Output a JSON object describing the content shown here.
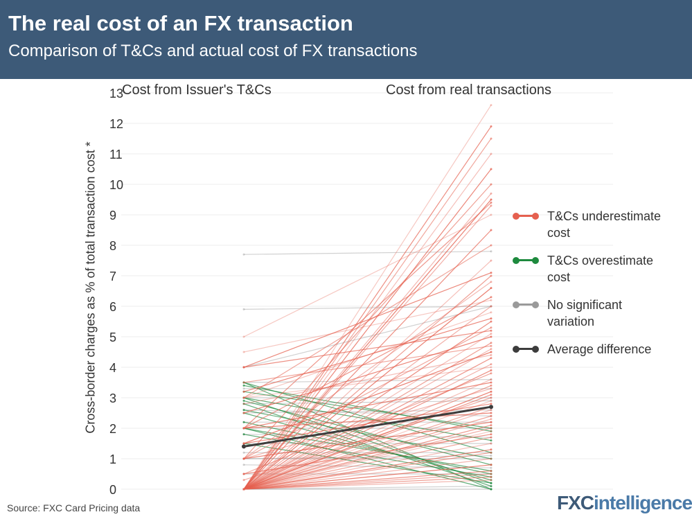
{
  "header": {
    "title": "The real cost of an FX transaction",
    "subtitle": "Comparison of T&Cs and actual cost of FX transactions"
  },
  "footer": {
    "source": "Source: FXC Card Pricing data",
    "logo": "FXCintelligence"
  },
  "chart_data": {
    "type": "slope",
    "categories": [
      "Cost from Issuer's T&Cs",
      "Cost from real transactions"
    ],
    "ylabel": "Cross-border charges as % of total transaction cost *",
    "ylim": [
      0,
      13
    ],
    "yticks": [
      0,
      1,
      2,
      3,
      4,
      5,
      6,
      7,
      8,
      9,
      10,
      11,
      12,
      13
    ],
    "grid": true,
    "legend_placement": "right",
    "series": [
      {
        "name": "T&Cs underestimate cost",
        "color": "#e5604f",
        "lines": [
          [
            0,
            12.6
          ],
          [
            0,
            11.9
          ],
          [
            0,
            11.5
          ],
          [
            0,
            11
          ],
          [
            0,
            10.5
          ],
          [
            1,
            10
          ],
          [
            0,
            9.7
          ],
          [
            0,
            9.5
          ],
          [
            2,
            9.4
          ],
          [
            0,
            9.3
          ],
          [
            5,
            9
          ],
          [
            0,
            8.5
          ],
          [
            3,
            8
          ],
          [
            0,
            7.5
          ],
          [
            4,
            7.1
          ],
          [
            0,
            7
          ],
          [
            1,
            6.8
          ],
          [
            0,
            6.6
          ],
          [
            2,
            6.3
          ],
          [
            0,
            6
          ],
          [
            3,
            5.8
          ],
          [
            0,
            5.5
          ],
          [
            1,
            5.3
          ],
          [
            0,
            5.1
          ],
          [
            2.5,
            5
          ],
          [
            0,
            4.8
          ],
          [
            0,
            4.6
          ],
          [
            1.5,
            4.5
          ],
          [
            0,
            4.3
          ],
          [
            0,
            4.1
          ],
          [
            3,
            4
          ],
          [
            0,
            3.9
          ],
          [
            0.5,
            3.8
          ],
          [
            0,
            3.6
          ],
          [
            2,
            3.5
          ],
          [
            0,
            3.4
          ],
          [
            1,
            3.3
          ],
          [
            0,
            3.2
          ],
          [
            0,
            3.1
          ],
          [
            0.3,
            3
          ],
          [
            0,
            2.9
          ],
          [
            1.5,
            2.8
          ],
          [
            0,
            2.7
          ],
          [
            0,
            2.6
          ],
          [
            2,
            2.5
          ],
          [
            0,
            2.4
          ],
          [
            0,
            2.3
          ],
          [
            1,
            2.2
          ],
          [
            0,
            2.1
          ],
          [
            0,
            2
          ],
          [
            0,
            1.9
          ],
          [
            0.5,
            1.8
          ],
          [
            0,
            1.7
          ],
          [
            0,
            1.5
          ],
          [
            0,
            1.3
          ],
          [
            0,
            1.2
          ],
          [
            0,
            1
          ],
          [
            0,
            0.8
          ],
          [
            0,
            0.6
          ],
          [
            0,
            0.5
          ],
          [
            4.5,
            6.2
          ],
          [
            4,
            5.2
          ],
          [
            3.5,
            4.7
          ],
          [
            2.8,
            4.4
          ],
          [
            3.2,
            5.6
          ],
          [
            0,
            0.4
          ],
          [
            0,
            0.3
          ]
        ]
      },
      {
        "name": "T&Cs overestimate cost",
        "color": "#1e8a3e",
        "lines": [
          [
            3.5,
            0
          ],
          [
            3,
            0.2
          ],
          [
            2.8,
            0.1
          ],
          [
            3.5,
            1.2
          ],
          [
            2.5,
            0.3
          ],
          [
            3,
            1.6
          ],
          [
            2.2,
            0.5
          ],
          [
            2,
            0
          ],
          [
            1.8,
            0.4
          ],
          [
            3.2,
            2
          ],
          [
            2.6,
            1
          ],
          [
            1.5,
            0.2
          ],
          [
            2.9,
            0.8
          ],
          [
            3.4,
            1.9
          ],
          [
            2,
            0.6
          ]
        ]
      },
      {
        "name": "No significant variation",
        "color": "#9a9a9a",
        "lines": [
          [
            7.7,
            7.8
          ],
          [
            5.9,
            6
          ],
          [
            3,
            3
          ],
          [
            2.5,
            2.6
          ],
          [
            2,
            2
          ],
          [
            1.5,
            1.5
          ],
          [
            1,
            1
          ],
          [
            3.5,
            3.6
          ],
          [
            0.5,
            0.5
          ],
          [
            2.8,
            2.9
          ],
          [
            1.2,
            1.2
          ],
          [
            0,
            0
          ],
          [
            2.2,
            2.2
          ],
          [
            3.3,
            3.3
          ],
          [
            1.8,
            1.7
          ],
          [
            4,
            6
          ],
          [
            0,
            0.1
          ],
          [
            1,
            1.1
          ],
          [
            2.6,
            2.4
          ],
          [
            0.8,
            0.7
          ]
        ]
      },
      {
        "name": "Average difference",
        "color": "#3c3c3c",
        "lines": [
          [
            1.4,
            2.7
          ]
        ]
      }
    ]
  }
}
